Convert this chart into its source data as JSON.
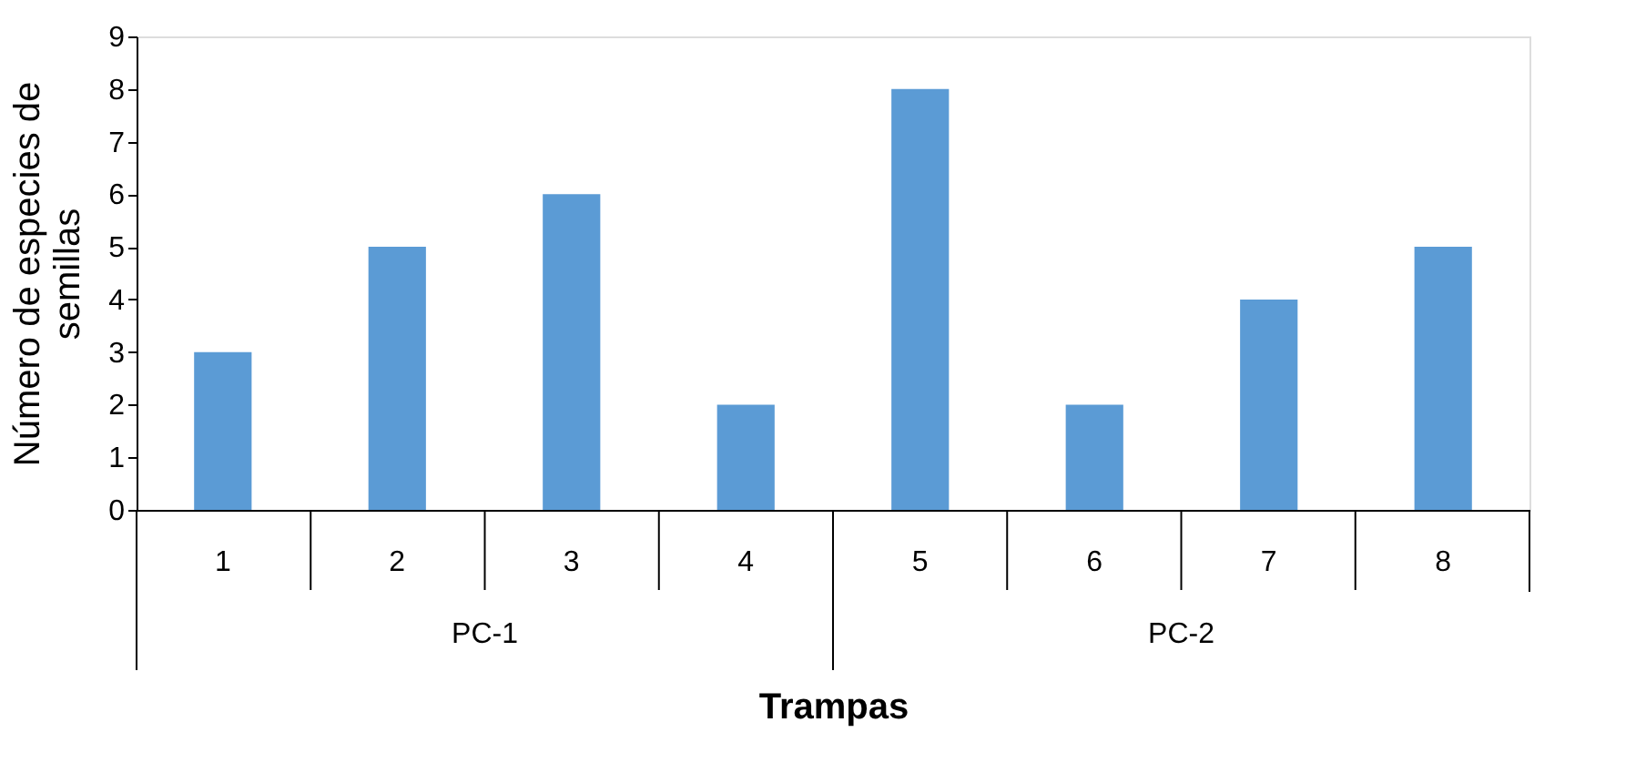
{
  "chart_data": {
    "type": "bar",
    "xlabel": "Trampas",
    "ylabel": "Número de especies  de semillas",
    "categories": [
      "1",
      "2",
      "3",
      "4",
      "5",
      "6",
      "7",
      "8"
    ],
    "values": [
      3,
      5,
      6,
      2,
      8,
      2,
      4,
      5
    ],
    "color": "#5b9bd5",
    "ylim": [
      0,
      9
    ],
    "yticks": [
      0,
      1,
      2,
      3,
      4,
      5,
      6,
      7,
      8,
      9
    ],
    "grid": false,
    "annotations": [
      "PC-1",
      "PC-2"
    ]
  }
}
